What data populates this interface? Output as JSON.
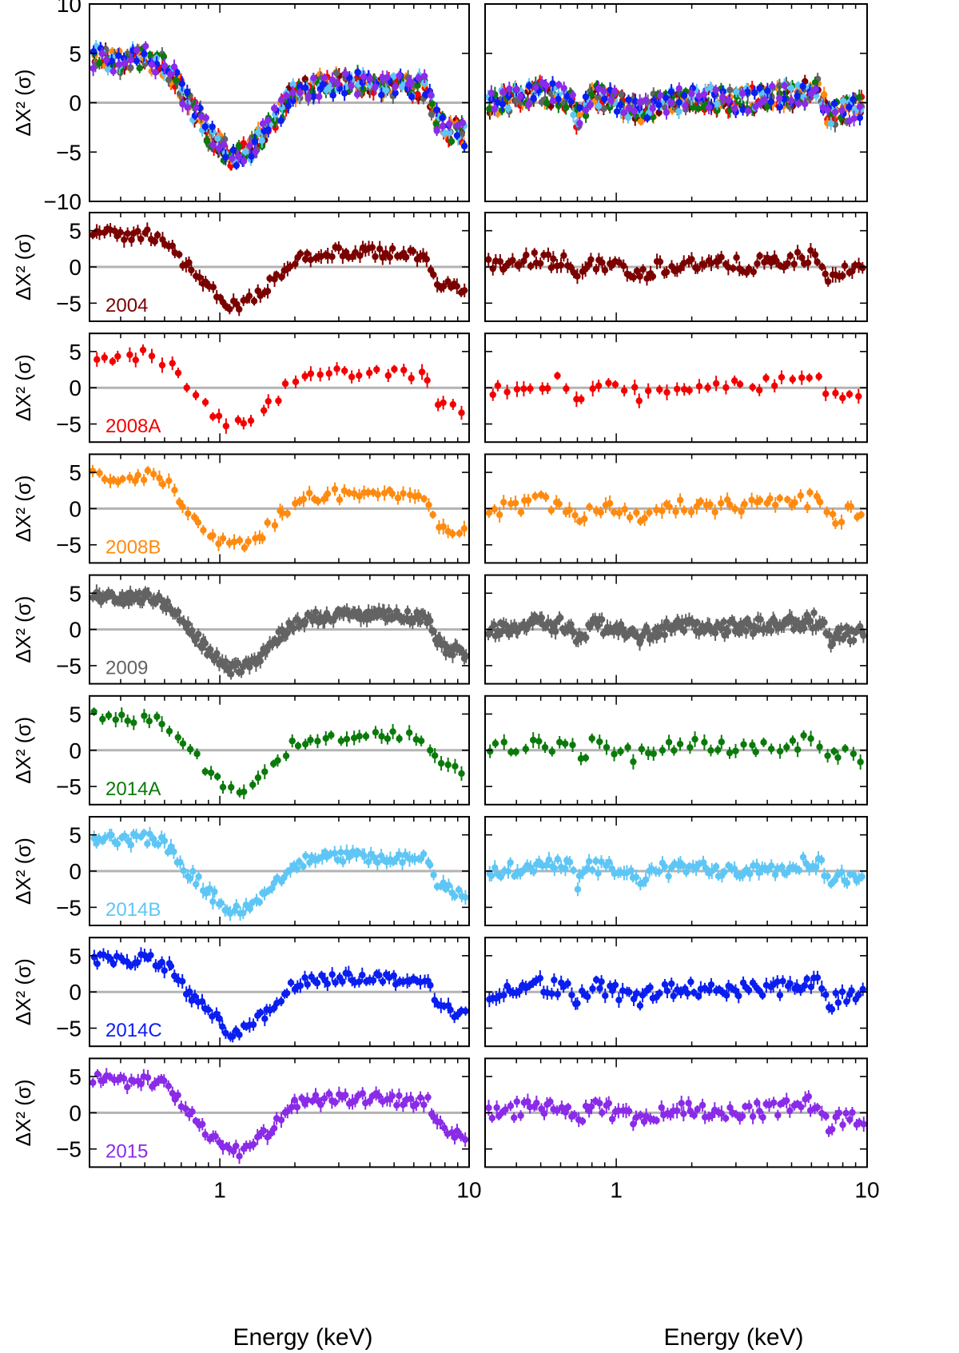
{
  "chart_data": {
    "type": "scatter",
    "x_scale": "log",
    "xlim": [
      0.3,
      10
    ],
    "xlabel": "Energy (keV)",
    "ylabel": "ΔX² (σ)",
    "x_ticks": [
      {
        "value": 1,
        "label": "1"
      },
      {
        "value": 10,
        "label": "10"
      }
    ],
    "grid": false,
    "baseline": 0,
    "baseline_color": "#b3b3b3",
    "series": [
      {
        "name": "2004",
        "color": "#7b0000"
      },
      {
        "name": "2008A",
        "color": "#f40000"
      },
      {
        "name": "2008B",
        "color": "#ff8a0f"
      },
      {
        "name": "2009",
        "color": "#636363"
      },
      {
        "name": "2014A",
        "color": "#0a7a0a"
      },
      {
        "name": "2014B",
        "color": "#5ec6f5"
      },
      {
        "name": "2014C",
        "color": "#0a1ef0"
      },
      {
        "name": "2015",
        "color": "#8a2be8"
      }
    ],
    "rows": [
      {
        "series": "all",
        "ylim": [
          -10,
          10
        ],
        "y_ticks": [
          -10,
          -5,
          0,
          5,
          10
        ],
        "show_label": false
      },
      {
        "series": "2004",
        "ylim": [
          -7.5,
          7.5
        ],
        "y_ticks": [
          -5,
          0,
          5
        ],
        "show_label": true
      },
      {
        "series": "2008A",
        "ylim": [
          -7.5,
          7.5
        ],
        "y_ticks": [
          -5,
          0,
          5
        ],
        "show_label": true
      },
      {
        "series": "2008B",
        "ylim": [
          -7.5,
          7.5
        ],
        "y_ticks": [
          -5,
          0,
          5
        ],
        "show_label": true
      },
      {
        "series": "2009",
        "ylim": [
          -7.5,
          7.5
        ],
        "y_ticks": [
          -5,
          0,
          5
        ],
        "show_label": true
      },
      {
        "series": "2014A",
        "ylim": [
          -7.5,
          7.5
        ],
        "y_ticks": [
          -5,
          0,
          5
        ],
        "show_label": true
      },
      {
        "series": "2014B",
        "ylim": [
          -7.5,
          7.5
        ],
        "y_ticks": [
          -5,
          0,
          5
        ],
        "show_label": true
      },
      {
        "series": "2014C",
        "ylim": [
          -7.5,
          7.5
        ],
        "y_ticks": [
          -5,
          0,
          5
        ],
        "show_label": true
      },
      {
        "series": "2015",
        "ylim": [
          -7.5,
          7.5
        ],
        "y_ticks": [
          -5,
          0,
          5
        ],
        "show_label": true
      }
    ],
    "left_column_trend": {
      "x": [
        0.33,
        0.4,
        0.5,
        0.58,
        0.65,
        0.72,
        0.8,
        0.9,
        1.0,
        1.1,
        1.2,
        1.35,
        1.5,
        1.7,
        2.0,
        2.5,
        3.0,
        4.0,
        5.0,
        6.0,
        6.8,
        7.3,
        8.0,
        9.0,
        10.0
      ],
      "y": [
        4.6,
        4.2,
        4.6,
        4.0,
        2.8,
        0.5,
        -1.0,
        -3.0,
        -4.2,
        -5.5,
        -5.2,
        -4.5,
        -3.2,
        -1.2,
        1.0,
        1.8,
        2.0,
        2.0,
        1.8,
        1.7,
        1.6,
        -1.5,
        -2.5,
        -3.0,
        -3.5
      ]
    },
    "right_column_trend": {
      "x": [
        0.33,
        0.5,
        0.65,
        0.7,
        0.8,
        1.0,
        1.2,
        1.5,
        2.0,
        3.0,
        4.0,
        5.0,
        6.0,
        6.5,
        7.0,
        8.0,
        10.0
      ],
      "y": [
        0.0,
        1.0,
        0.5,
        -1.5,
        0.8,
        0.0,
        -1.0,
        0.0,
        0.5,
        0.2,
        0.5,
        0.8,
        1.2,
        1.5,
        -1.5,
        -0.8,
        -0.5
      ]
    }
  }
}
